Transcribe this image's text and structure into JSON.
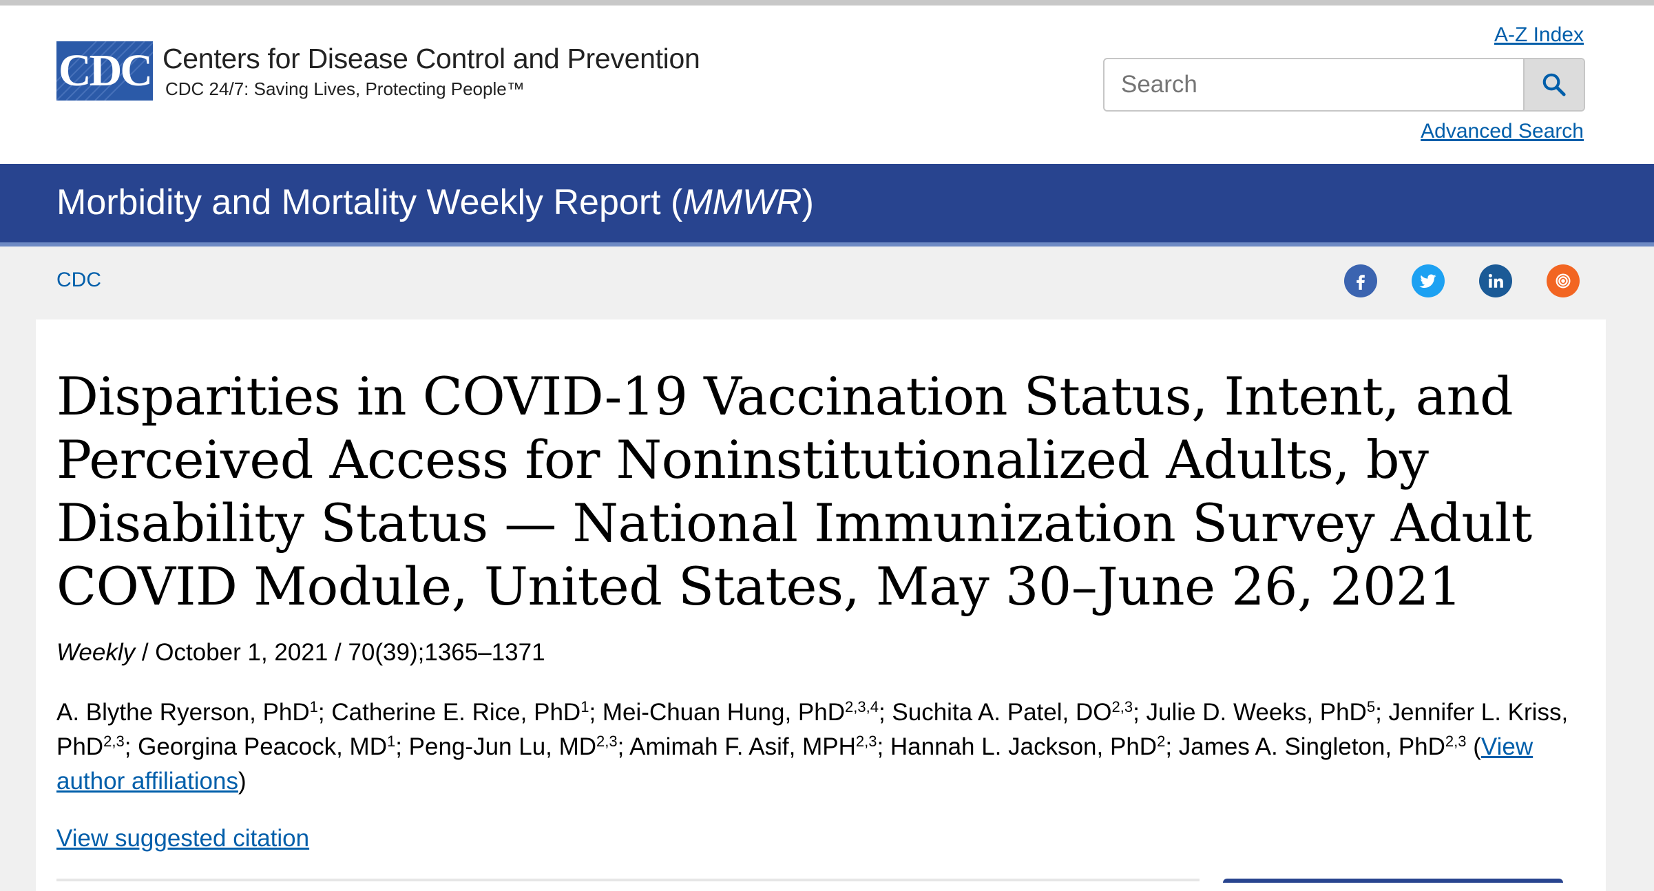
{
  "header": {
    "logo_text": "CDC",
    "agency_name": "Centers for Disease Control and Prevention",
    "tagline": "CDC 24/7: Saving Lives, Protecting People™",
    "az_index_label": "A-Z Index",
    "search_placeholder": "Search",
    "advanced_search_label": "Advanced Search",
    "search_icon": "search-icon"
  },
  "banner": {
    "title_prefix": "Morbidity and Mortality Weekly Report (",
    "title_abbrev": "MMWR",
    "title_suffix": ")"
  },
  "breadcrumb": {
    "root": "CDC"
  },
  "social": {
    "icons": [
      "facebook-icon",
      "twitter-icon",
      "linkedin-icon",
      "syndicate-icon"
    ],
    "colors": {
      "facebook": "#3b64b0",
      "twitter": "#1da1f2",
      "linkedin": "#1b5a96",
      "syndicate": "#f26522"
    }
  },
  "article": {
    "title": "Disparities in COVID-19 Vaccination Status, Intent, and Perceived Access for Noninstitutionalized Adults, by Disability Status — National Immunization Survey Adult COVID Module, United States, May 30–June 26, 2021",
    "series": "Weekly",
    "meta_rest": " / October 1, 2021 / 70(39);1365–1371",
    "authors": [
      {
        "name": "A. Blythe Ryerson, PhD",
        "aff": "1"
      },
      {
        "name": "Catherine E. Rice, PhD",
        "aff": "1"
      },
      {
        "name": "Mei-Chuan Hung, PhD",
        "aff": "2,3,4"
      },
      {
        "name": "Suchita A. Patel, DO",
        "aff": "2,3"
      },
      {
        "name": "Julie D. Weeks, PhD",
        "aff": "5"
      },
      {
        "name": "Jennifer L. Kriss, PhD",
        "aff": "2,3"
      },
      {
        "name": "Georgina Peacock, MD",
        "aff": "1"
      },
      {
        "name": "Peng-Jun Lu, MD",
        "aff": "2,3"
      },
      {
        "name": "Amimah F. Asif, MPH",
        "aff": "2,3"
      },
      {
        "name": "Hannah L. Jackson, PhD",
        "aff": "2"
      },
      {
        "name": "James A. Singleton, PhD",
        "aff": "2,3"
      }
    ],
    "view_affiliations_label": "View author affiliations",
    "view_citation_label": "View suggested citation"
  },
  "colors": {
    "banner": "#28448f",
    "link": "#005eaa",
    "logo": "#2b5aa8"
  }
}
